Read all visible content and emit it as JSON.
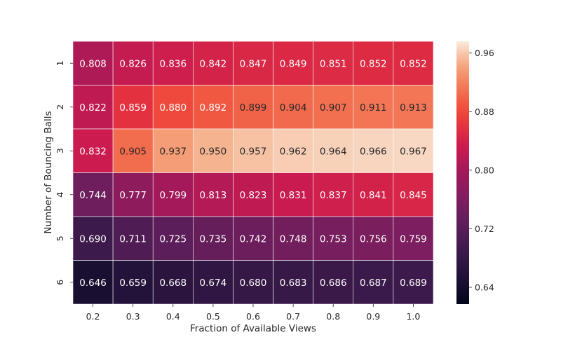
{
  "chart_data": {
    "type": "heatmap",
    "xlabel": "Fraction of Available Views",
    "ylabel": "Number of Bouncing Balls",
    "x_categories": [
      "0.2",
      "0.3",
      "0.4",
      "0.5",
      "0.6",
      "0.7",
      "0.8",
      "0.9",
      "1.0"
    ],
    "y_categories": [
      "1",
      "2",
      "3",
      "4",
      "5",
      "6"
    ],
    "values": [
      [
        0.808,
        0.826,
        0.836,
        0.842,
        0.847,
        0.849,
        0.851,
        0.852,
        0.852
      ],
      [
        0.822,
        0.859,
        0.88,
        0.892,
        0.899,
        0.904,
        0.907,
        0.911,
        0.913
      ],
      [
        0.832,
        0.905,
        0.937,
        0.95,
        0.957,
        0.962,
        0.964,
        0.966,
        0.967
      ],
      [
        0.744,
        0.777,
        0.799,
        0.813,
        0.823,
        0.831,
        0.837,
        0.841,
        0.845
      ],
      [
        0.69,
        0.711,
        0.725,
        0.735,
        0.742,
        0.748,
        0.753,
        0.756,
        0.759
      ],
      [
        0.646,
        0.659,
        0.668,
        0.674,
        0.68,
        0.683,
        0.686,
        0.687,
        0.689
      ]
    ],
    "value_labels": [
      [
        "0.808",
        "0.826",
        "0.836",
        "0.842",
        "0.847",
        "0.849",
        "0.851",
        "0.852",
        "0.852"
      ],
      [
        "0.822",
        "0.859",
        "0.880",
        "0.892",
        "0.899",
        "0.904",
        "0.907",
        "0.911",
        "0.913"
      ],
      [
        "0.832",
        "0.905",
        "0.937",
        "0.950",
        "0.957",
        "0.962",
        "0.964",
        "0.966",
        "0.967"
      ],
      [
        "0.744",
        "0.777",
        "0.799",
        "0.813",
        "0.823",
        "0.831",
        "0.837",
        "0.841",
        "0.845"
      ],
      [
        "0.690",
        "0.711",
        "0.725",
        "0.735",
        "0.742",
        "0.748",
        "0.753",
        "0.756",
        "0.759"
      ],
      [
        "0.646",
        "0.659",
        "0.668",
        "0.674",
        "0.680",
        "0.683",
        "0.686",
        "0.687",
        "0.689"
      ]
    ],
    "colormap": "rocket",
    "color_range": [
      0.617,
      0.976
    ],
    "colorbar_ticks": [
      0.64,
      0.72,
      0.8,
      0.88,
      0.96
    ],
    "colorbar_tick_labels": [
      "0.64",
      "0.72",
      "0.80",
      "0.88",
      "0.96"
    ],
    "colorbar_placement": "right",
    "grid": false,
    "cell_border_color": "#ffffff"
  }
}
